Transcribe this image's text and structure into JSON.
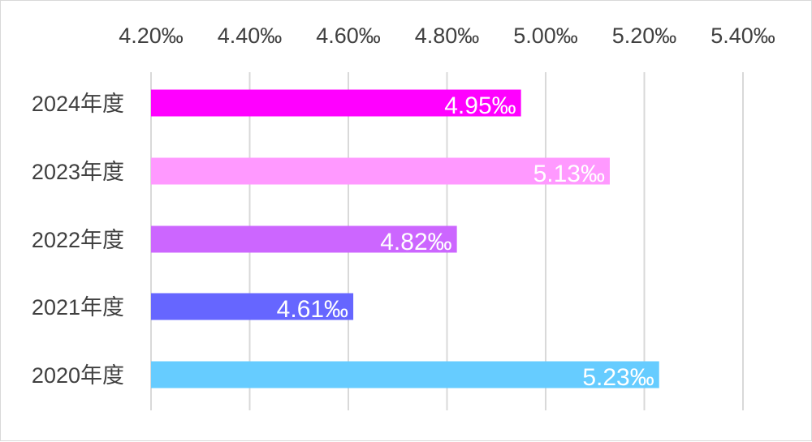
{
  "chart_data": {
    "type": "bar",
    "orientation": "horizontal",
    "categories": [
      "2024年度",
      "2023年度",
      "2022年度",
      "2021年度",
      "2020年度"
    ],
    "values": [
      4.95,
      5.13,
      4.82,
      4.61,
      5.23
    ],
    "value_labels": [
      "4.95‰",
      "5.13‰",
      "4.82‰",
      "4.61‰",
      "5.23‰"
    ],
    "bar_colors": [
      "#ff00ff",
      "#ff99ff",
      "#cc66ff",
      "#6666ff",
      "#66ccff"
    ],
    "xlim": [
      4.2,
      5.4
    ],
    "x_ticks": [
      4.2,
      4.4,
      4.6,
      4.8,
      5.0,
      5.2,
      5.4
    ],
    "x_tick_labels": [
      "4.20‰",
      "4.40‰",
      "4.60‰",
      "4.80‰",
      "5.00‰",
      "5.20‰",
      "5.40‰"
    ],
    "x_axis_position": "top",
    "grid": true,
    "legend": "none",
    "title": "",
    "xlabel": "",
    "ylabel": ""
  }
}
